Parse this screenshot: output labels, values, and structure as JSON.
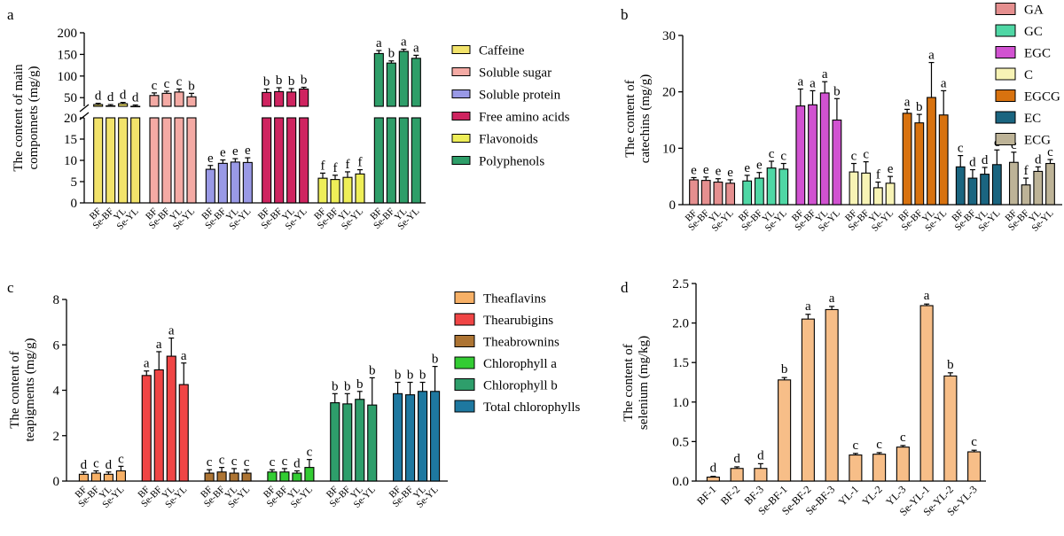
{
  "colors": {
    "caffeine": "#F2E36B",
    "soluble_sugar": "#F4AAA4",
    "soluble_protein": "#9999E6",
    "free_amino_acids": "#CF2460",
    "flavonoids": "#EEEE58",
    "polyphenols": "#2E9E69",
    "GA": "#E58F8F",
    "GC": "#4FD7A5",
    "EGC": "#D152D1",
    "C": "#F7F3B5",
    "EGCG": "#D8720F",
    "EC": "#1A6580",
    "ECG": "#BDB397",
    "theaflavins": "#F7B066",
    "thearubigins": "#F04545",
    "theabrownins": "#AD7433",
    "chlorophyll_a": "#33CC33",
    "chlorophyll_b": "#2E9E6B",
    "total_chlorophylls": "#1E78A0",
    "selenium": "#F7BE88"
  },
  "chart_data": [
    {
      "panel": "a",
      "type": "bar",
      "ylabel_lines": [
        "The content of main",
        "componnets (mg/g)"
      ],
      "broken_axis": true,
      "upper_range": [
        30,
        200
      ],
      "upper_ticks": [
        50,
        100,
        150,
        200
      ],
      "lower_range": [
        0,
        20
      ],
      "lower_ticks": [
        0,
        5,
        10,
        15,
        20
      ],
      "categories": [
        "BF",
        "Se-BF",
        "YL",
        "Se-YL"
      ],
      "series": [
        {
          "name": "Caffeine",
          "color_key": "caffeine",
          "values": [
            34,
            31,
            36,
            30
          ],
          "errors": [
            3,
            3,
            3,
            3
          ],
          "letters": [
            "d",
            "d",
            "d",
            "d"
          ]
        },
        {
          "name": "Soluble sugar",
          "color_key": "soluble_sugar",
          "values": [
            55,
            60,
            63,
            52
          ],
          "errors": [
            6,
            5,
            7,
            8
          ],
          "letters": [
            "c",
            "c",
            "c",
            "b"
          ]
        },
        {
          "name": "Soluble protein",
          "color_key": "soluble_protein",
          "values": [
            7.9,
            9.3,
            9.6,
            9.5
          ],
          "errors": [
            0.9,
            0.8,
            0.8,
            1.1
          ],
          "letters": [
            "e",
            "e",
            "e",
            "e"
          ]
        },
        {
          "name": "Free amino acids",
          "color_key": "free_amino_acids",
          "values": [
            62,
            64,
            63,
            70
          ],
          "errors": [
            8,
            9,
            8,
            4
          ],
          "letters": [
            "b",
            "b",
            "b",
            "b"
          ]
        },
        {
          "name": "Flavonoids",
          "color_key": "flavonoids",
          "values": [
            5.8,
            5.5,
            6.0,
            6.8
          ],
          "errors": [
            1.2,
            1.0,
            1.3,
            1.0
          ],
          "letters": [
            "f",
            "f",
            "f",
            "f"
          ]
        },
        {
          "name": "Polyphenols",
          "color_key": "polyphenols",
          "values": [
            152,
            130,
            157,
            141
          ],
          "errors": [
            7,
            5,
            5,
            7
          ],
          "letters": [
            "a",
            "b",
            "a",
            "a"
          ]
        }
      ]
    },
    {
      "panel": "b",
      "type": "bar",
      "ylabel_lines": [
        "The content of",
        "catechins (mg/g)"
      ],
      "ylim": [
        0,
        30
      ],
      "yticks": [
        0,
        10,
        20,
        30
      ],
      "categories": [
        "BF",
        "Se-BF",
        "YL",
        "Se-YL"
      ],
      "series": [
        {
          "name": "GA",
          "color_key": "GA",
          "values": [
            4.4,
            4.3,
            4.0,
            3.8
          ],
          "errors": [
            0.4,
            0.6,
            0.6,
            0.6
          ],
          "letters": [
            "e",
            "e",
            "e",
            "e"
          ]
        },
        {
          "name": "GC",
          "color_key": "GC",
          "values": [
            4.2,
            4.7,
            6.5,
            6.3
          ],
          "errors": [
            1.0,
            1.0,
            1.2,
            1.0
          ],
          "letters": [
            "e",
            "e",
            "c",
            "c"
          ]
        },
        {
          "name": "EGC",
          "color_key": "EGC",
          "values": [
            17.5,
            17.7,
            19.8,
            15.0
          ],
          "errors": [
            3.0,
            2.5,
            2.0,
            3.8
          ],
          "letters": [
            "a",
            "a",
            "a",
            "b"
          ]
        },
        {
          "name": "C",
          "color_key": "C",
          "values": [
            5.8,
            5.6,
            3.0,
            3.8
          ],
          "errors": [
            1.5,
            2.0,
            1.0,
            1.2
          ],
          "letters": [
            "c",
            "c",
            "f",
            "e"
          ]
        },
        {
          "name": "EGCG",
          "color_key": "EGCG",
          "values": [
            16.2,
            14.5,
            19.0,
            15.9
          ],
          "errors": [
            0.7,
            1.5,
            6.2,
            4.3
          ],
          "letters": [
            "a",
            "b",
            "a",
            "a"
          ]
        },
        {
          "name": "EC",
          "color_key": "EC",
          "values": [
            6.7,
            4.7,
            5.4,
            7.1
          ],
          "errors": [
            2.0,
            1.5,
            1.2,
            2.6
          ],
          "letters": [
            "c",
            "d",
            "d",
            "c"
          ]
        },
        {
          "name": "ECG",
          "color_key": "ECG",
          "values": [
            7.5,
            3.5,
            5.9,
            7.3
          ],
          "errors": [
            1.8,
            1.2,
            0.8,
            0.7
          ],
          "letters": [
            "c",
            "f",
            "d",
            "c"
          ]
        }
      ]
    },
    {
      "panel": "c",
      "type": "bar",
      "ylabel_lines": [
        "The content of",
        "teapigments (mg/g)"
      ],
      "ylim": [
        0,
        8
      ],
      "yticks": [
        0,
        2,
        4,
        6,
        8
      ],
      "categories": [
        "BF",
        "Se-BF",
        "YL",
        "Se-YL"
      ],
      "series": [
        {
          "name": "Theaflavins",
          "color_key": "theaflavins",
          "values": [
            0.3,
            0.35,
            0.3,
            0.45
          ],
          "errors": [
            0.1,
            0.1,
            0.1,
            0.2
          ],
          "letters": [
            "d",
            "c",
            "d",
            "c"
          ]
        },
        {
          "name": "Thearubigins",
          "color_key": "thearubigins",
          "values": [
            4.65,
            4.9,
            5.5,
            4.25
          ],
          "errors": [
            0.2,
            0.8,
            0.8,
            0.95
          ],
          "letters": [
            "a",
            "a",
            "a",
            "a"
          ]
        },
        {
          "name": "Theabrownins",
          "color_key": "theabrownins",
          "values": [
            0.35,
            0.4,
            0.35,
            0.35
          ],
          "errors": [
            0.15,
            0.2,
            0.2,
            0.15
          ],
          "letters": [
            "c",
            "c",
            "c",
            "c"
          ]
        },
        {
          "name": "Chlorophyll a",
          "color_key": "chlorophyll_a",
          "values": [
            0.4,
            0.4,
            0.35,
            0.6
          ],
          "errors": [
            0.1,
            0.15,
            0.1,
            0.35
          ],
          "letters": [
            "c",
            "c",
            "d",
            "c"
          ]
        },
        {
          "name": "Chlorophyll b",
          "color_key": "chlorophyll_b",
          "values": [
            3.45,
            3.4,
            3.6,
            3.35
          ],
          "errors": [
            0.4,
            0.45,
            0.35,
            1.2
          ],
          "letters": [
            "b",
            "b",
            "b",
            "b"
          ]
        },
        {
          "name": "Total chlorophylls",
          "color_key": "total_chlorophylls",
          "values": [
            3.85,
            3.8,
            3.95,
            3.95
          ],
          "errors": [
            0.5,
            0.55,
            0.4,
            1.1
          ],
          "letters": [
            "b",
            "b",
            "b",
            "b"
          ]
        }
      ]
    },
    {
      "panel": "d",
      "type": "bar",
      "ylabel_lines": [
        "The content of",
        "selenium (mg/kg)"
      ],
      "ylim": [
        0,
        2.5
      ],
      "yticks": [
        0.0,
        0.5,
        1.0,
        1.5,
        2.0,
        2.5
      ],
      "ytick_labels": [
        "0.0",
        "0.5",
        "1.0",
        "1.5",
        "2.0",
        "2.5"
      ],
      "color_key": "selenium",
      "categories": [
        "BF-1",
        "BF-2",
        "BF-3",
        "Se-BF-1",
        "Se-BF-2",
        "Se-BF-3",
        "YL-1",
        "YL-2",
        "YL-3",
        "Se-YL-1",
        "Se-YL-2",
        "Se-YL-3"
      ],
      "values": [
        0.05,
        0.16,
        0.16,
        1.28,
        2.05,
        2.17,
        0.33,
        0.34,
        0.43,
        2.22,
        1.33,
        0.37
      ],
      "errors": [
        0.01,
        0.02,
        0.06,
        0.03,
        0.06,
        0.04,
        0.02,
        0.02,
        0.02,
        0.02,
        0.04,
        0.02
      ],
      "letters": [
        "d",
        "d",
        "d",
        "b",
        "a",
        "a",
        "c",
        "c",
        "c",
        "a",
        "b",
        "c"
      ]
    }
  ]
}
